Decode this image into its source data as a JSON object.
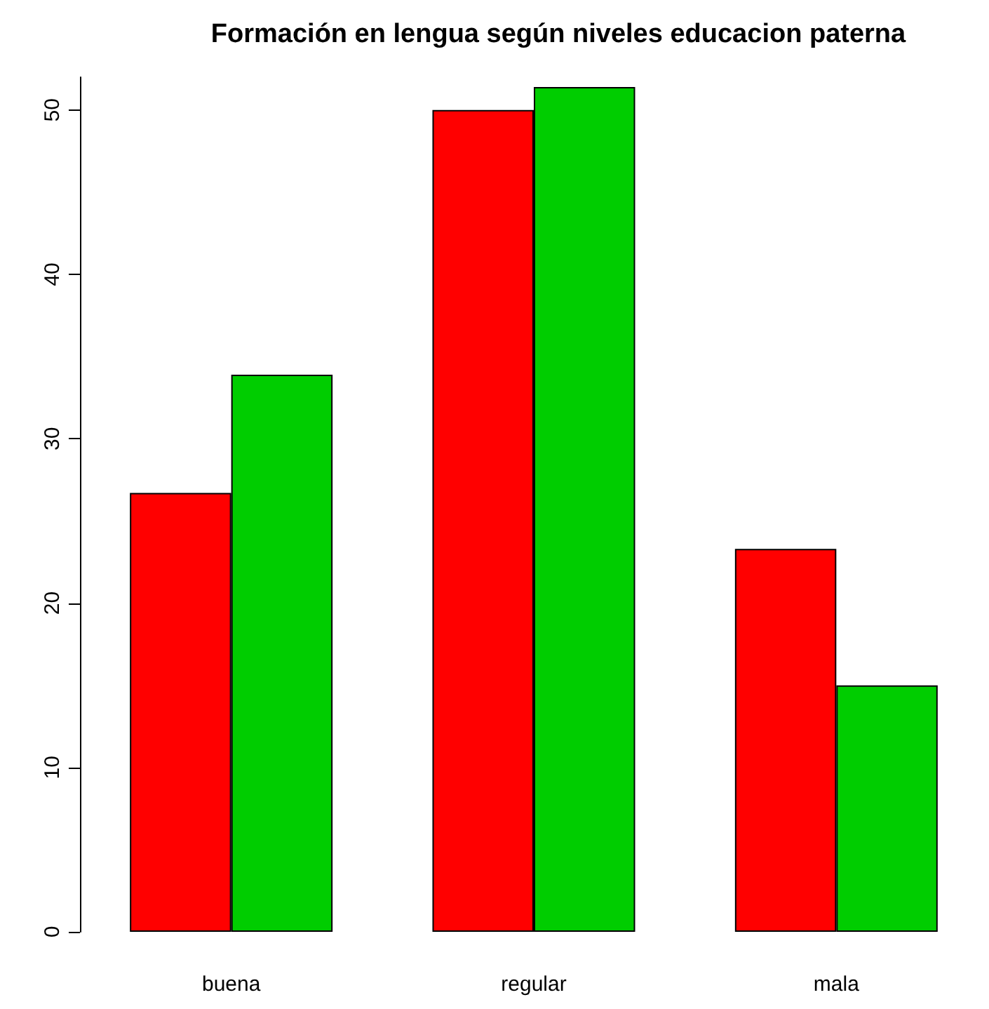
{
  "chart_data": {
    "type": "bar",
    "title": "Formación en lengua según niveles educacion paterna",
    "categories": [
      "buena",
      "regular",
      "mala"
    ],
    "series": [
      {
        "color": "#ff0000",
        "values": [
          26.7,
          50,
          23.3
        ]
      },
      {
        "color": "#00cd00",
        "values": [
          33.9,
          51.4,
          15
        ]
      }
    ],
    "ylim": [
      0,
      52
    ],
    "yticks": [
      0,
      10,
      20,
      30,
      40,
      50
    ],
    "grid": false
  }
}
